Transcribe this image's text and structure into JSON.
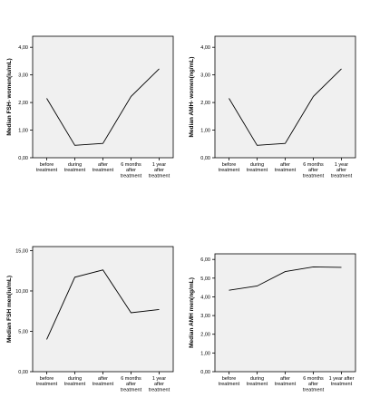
{
  "chart_data": [
    {
      "type": "line",
      "ylabel": "Median FSH- women(iu/mL)",
      "categories": [
        "before|treatment",
        "during|treatment",
        "after|treatment",
        "6 months|after|treatment",
        "1 year|after|treatment"
      ],
      "values": [
        2.15,
        0.45,
        0.52,
        2.22,
        3.22
      ],
      "ylim": [
        0,
        4.4
      ],
      "yticks": [
        0,
        1,
        2,
        3,
        4
      ],
      "yticklabels": [
        "0,00",
        "1,00",
        "2,00",
        "3,00",
        "4,00"
      ],
      "plot_bg": "#f0f0f0",
      "line_color": "#000000"
    },
    {
      "type": "line",
      "ylabel": "Median AMH- women(ng/mL)",
      "categories": [
        "before|treatment",
        "during|treatment",
        "after|treatment",
        "6 months|after|treatment",
        "1 year|after|treatment"
      ],
      "values": [
        2.15,
        0.45,
        0.52,
        2.22,
        3.22
      ],
      "ylim": [
        0,
        4.4
      ],
      "yticks": [
        0,
        1,
        2,
        3,
        4
      ],
      "yticklabels": [
        "0,00",
        "1,00",
        "2,00",
        "3,00",
        "4,00"
      ],
      "plot_bg": "#f0f0f0",
      "line_color": "#000000"
    },
    {
      "type": "line",
      "ylabel": "Median FSH men(iu/mL)",
      "categories": [
        "before|treatment",
        "during|treatment",
        "after|treatment",
        "6 months|after|treatment",
        "1 year|after|treatment"
      ],
      "values": [
        4.0,
        11.7,
        12.6,
        7.3,
        7.7
      ],
      "ylim": [
        0,
        15.5
      ],
      "yticks": [
        0,
        5,
        10,
        15
      ],
      "yticklabels": [
        "0,00",
        "5,00",
        "10,00",
        "15,00"
      ],
      "plot_bg": "#f0f0f0",
      "line_color": "#000000"
    },
    {
      "type": "line",
      "ylabel": "Median AMH men(ng/mL)",
      "categories": [
        "before|treatment",
        "during|treatment",
        "after|treatment",
        "6 months|after|treatment",
        "1 year after|treatment"
      ],
      "values": [
        4.35,
        4.58,
        5.35,
        5.6,
        5.58
      ],
      "ylim": [
        0,
        6.3
      ],
      "yticks": [
        0,
        1,
        2,
        3,
        4,
        5,
        6
      ],
      "yticklabels": [
        "0,00",
        "1,00",
        "2,00",
        "3,00",
        "4,00",
        "5,00",
        "6,00"
      ],
      "plot_bg": "#f0f0f0",
      "line_color": "#000000"
    }
  ]
}
